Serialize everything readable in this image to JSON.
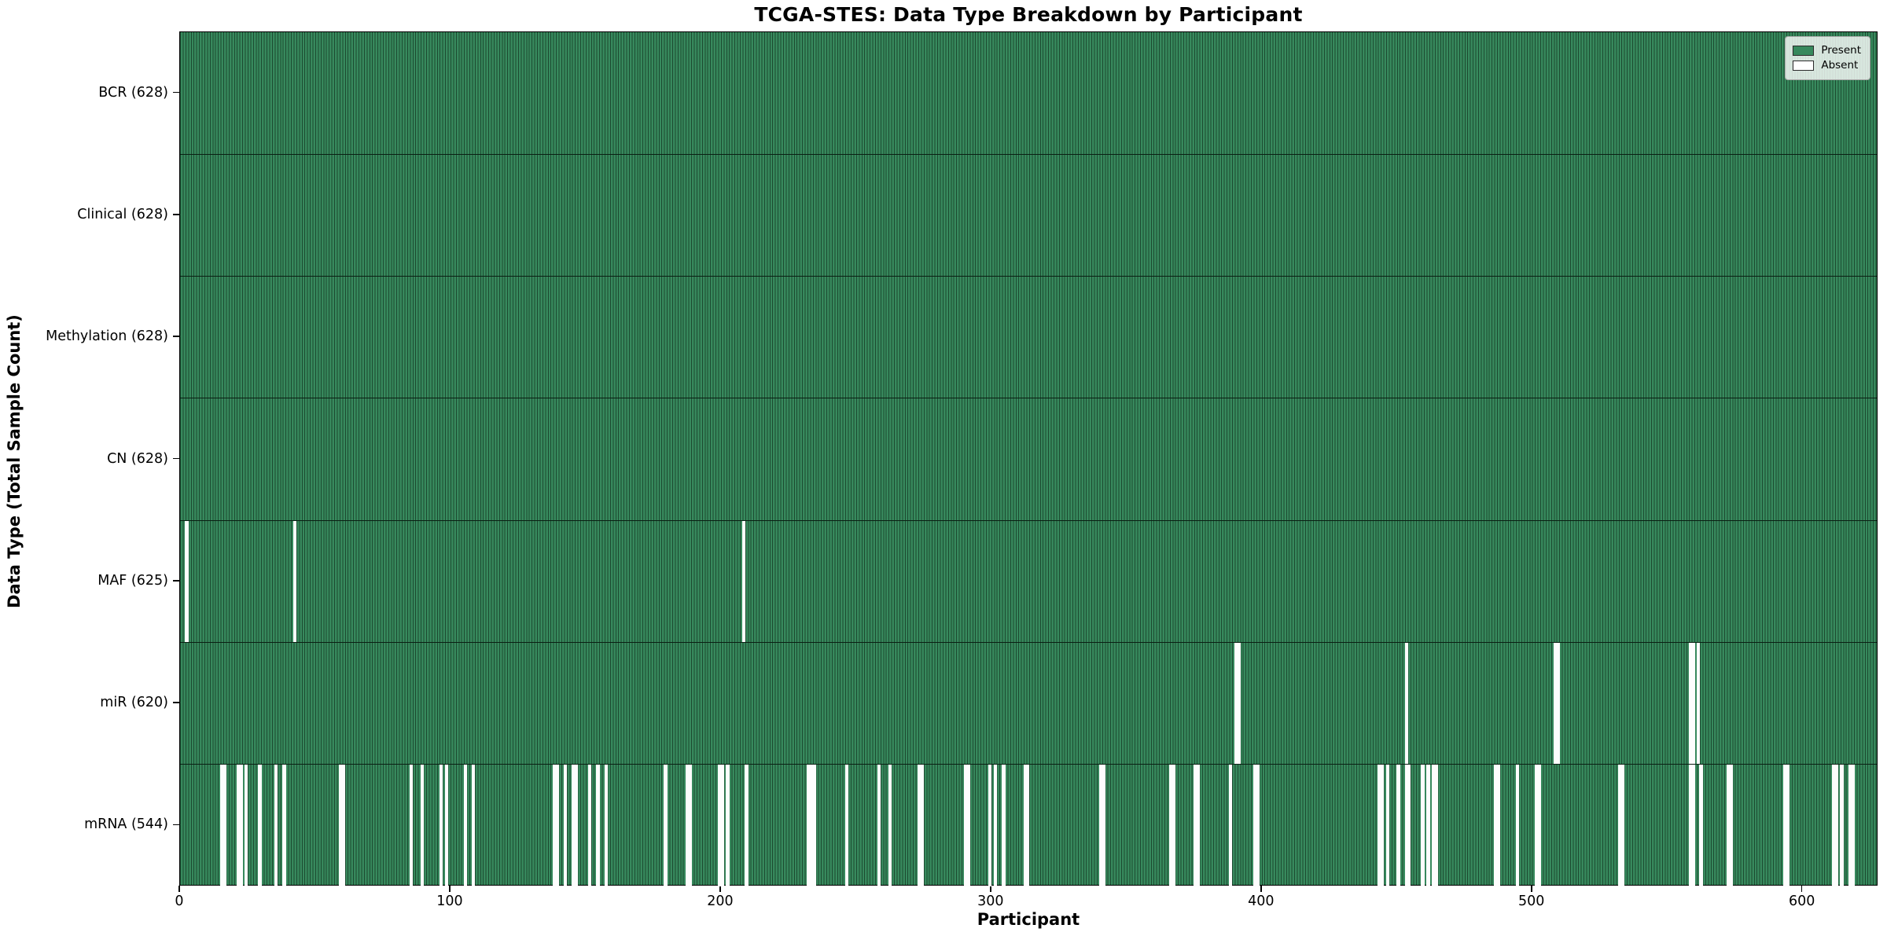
{
  "figure": {
    "title": "TCGA-STES: Data Type Breakdown by Participant",
    "xlabel": "Participant",
    "ylabel": "Data Type (Total Sample Count)"
  },
  "legend": {
    "present_label": "Present",
    "absent_label": "Absent"
  },
  "colors": {
    "present_fill": "#37895d",
    "bar_edge": "#1c4a30",
    "absent_fill": "#fdfdfd",
    "axis": "#000000"
  },
  "chart_data": {
    "type": "heatmap",
    "title": "TCGA-STES: Data Type Breakdown by Participant",
    "xlabel": "Participant",
    "ylabel": "Data Type (Total Sample Count)",
    "legend_entries": [
      "Present",
      "Absent"
    ],
    "legend_position": "upper right",
    "n_participants": 628,
    "x_ticks": [
      0,
      100,
      200,
      300,
      400,
      500,
      600
    ],
    "grid": false,
    "rows": [
      {
        "label": "BCR (628)",
        "data_type": "BCR",
        "present_count": 628,
        "absent_participants": []
      },
      {
        "label": "Clinical (628)",
        "data_type": "Clinical",
        "present_count": 628,
        "absent_participants": []
      },
      {
        "label": "Methylation (628)",
        "data_type": "Methylation",
        "present_count": 628,
        "absent_participants": []
      },
      {
        "label": "CN (628)",
        "data_type": "CN",
        "present_count": 628,
        "absent_participants": []
      },
      {
        "label": "MAF (625)",
        "data_type": "MAF",
        "present_count": 625,
        "absent_participants": [
          2,
          42,
          208
        ]
      },
      {
        "label": "miR (620)",
        "data_type": "miR",
        "present_count": 620,
        "absent_participants": [
          390,
          391,
          453,
          508,
          509,
          558,
          559,
          561
        ]
      },
      {
        "label": "mRNA (544)",
        "data_type": "mRNA",
        "present_count": 544,
        "absent_participants": [
          15,
          16,
          21,
          22,
          24,
          29,
          35,
          38,
          59,
          60,
          85,
          89,
          96,
          98,
          105,
          108,
          138,
          139,
          142,
          145,
          146,
          151,
          154,
          157,
          179,
          187,
          188,
          199,
          200,
          202,
          209,
          232,
          233,
          234,
          246,
          258,
          262,
          273,
          274,
          290,
          291,
          299,
          301,
          304,
          312,
          313,
          340,
          341,
          366,
          367,
          375,
          376,
          388,
          397,
          398,
          443,
          444,
          446,
          450,
          453,
          454,
          459,
          461,
          463,
          464,
          486,
          487,
          494,
          501,
          502,
          532,
          533,
          558,
          559,
          562,
          572,
          573,
          593,
          594,
          611,
          612,
          614,
          617,
          618
        ]
      }
    ]
  }
}
